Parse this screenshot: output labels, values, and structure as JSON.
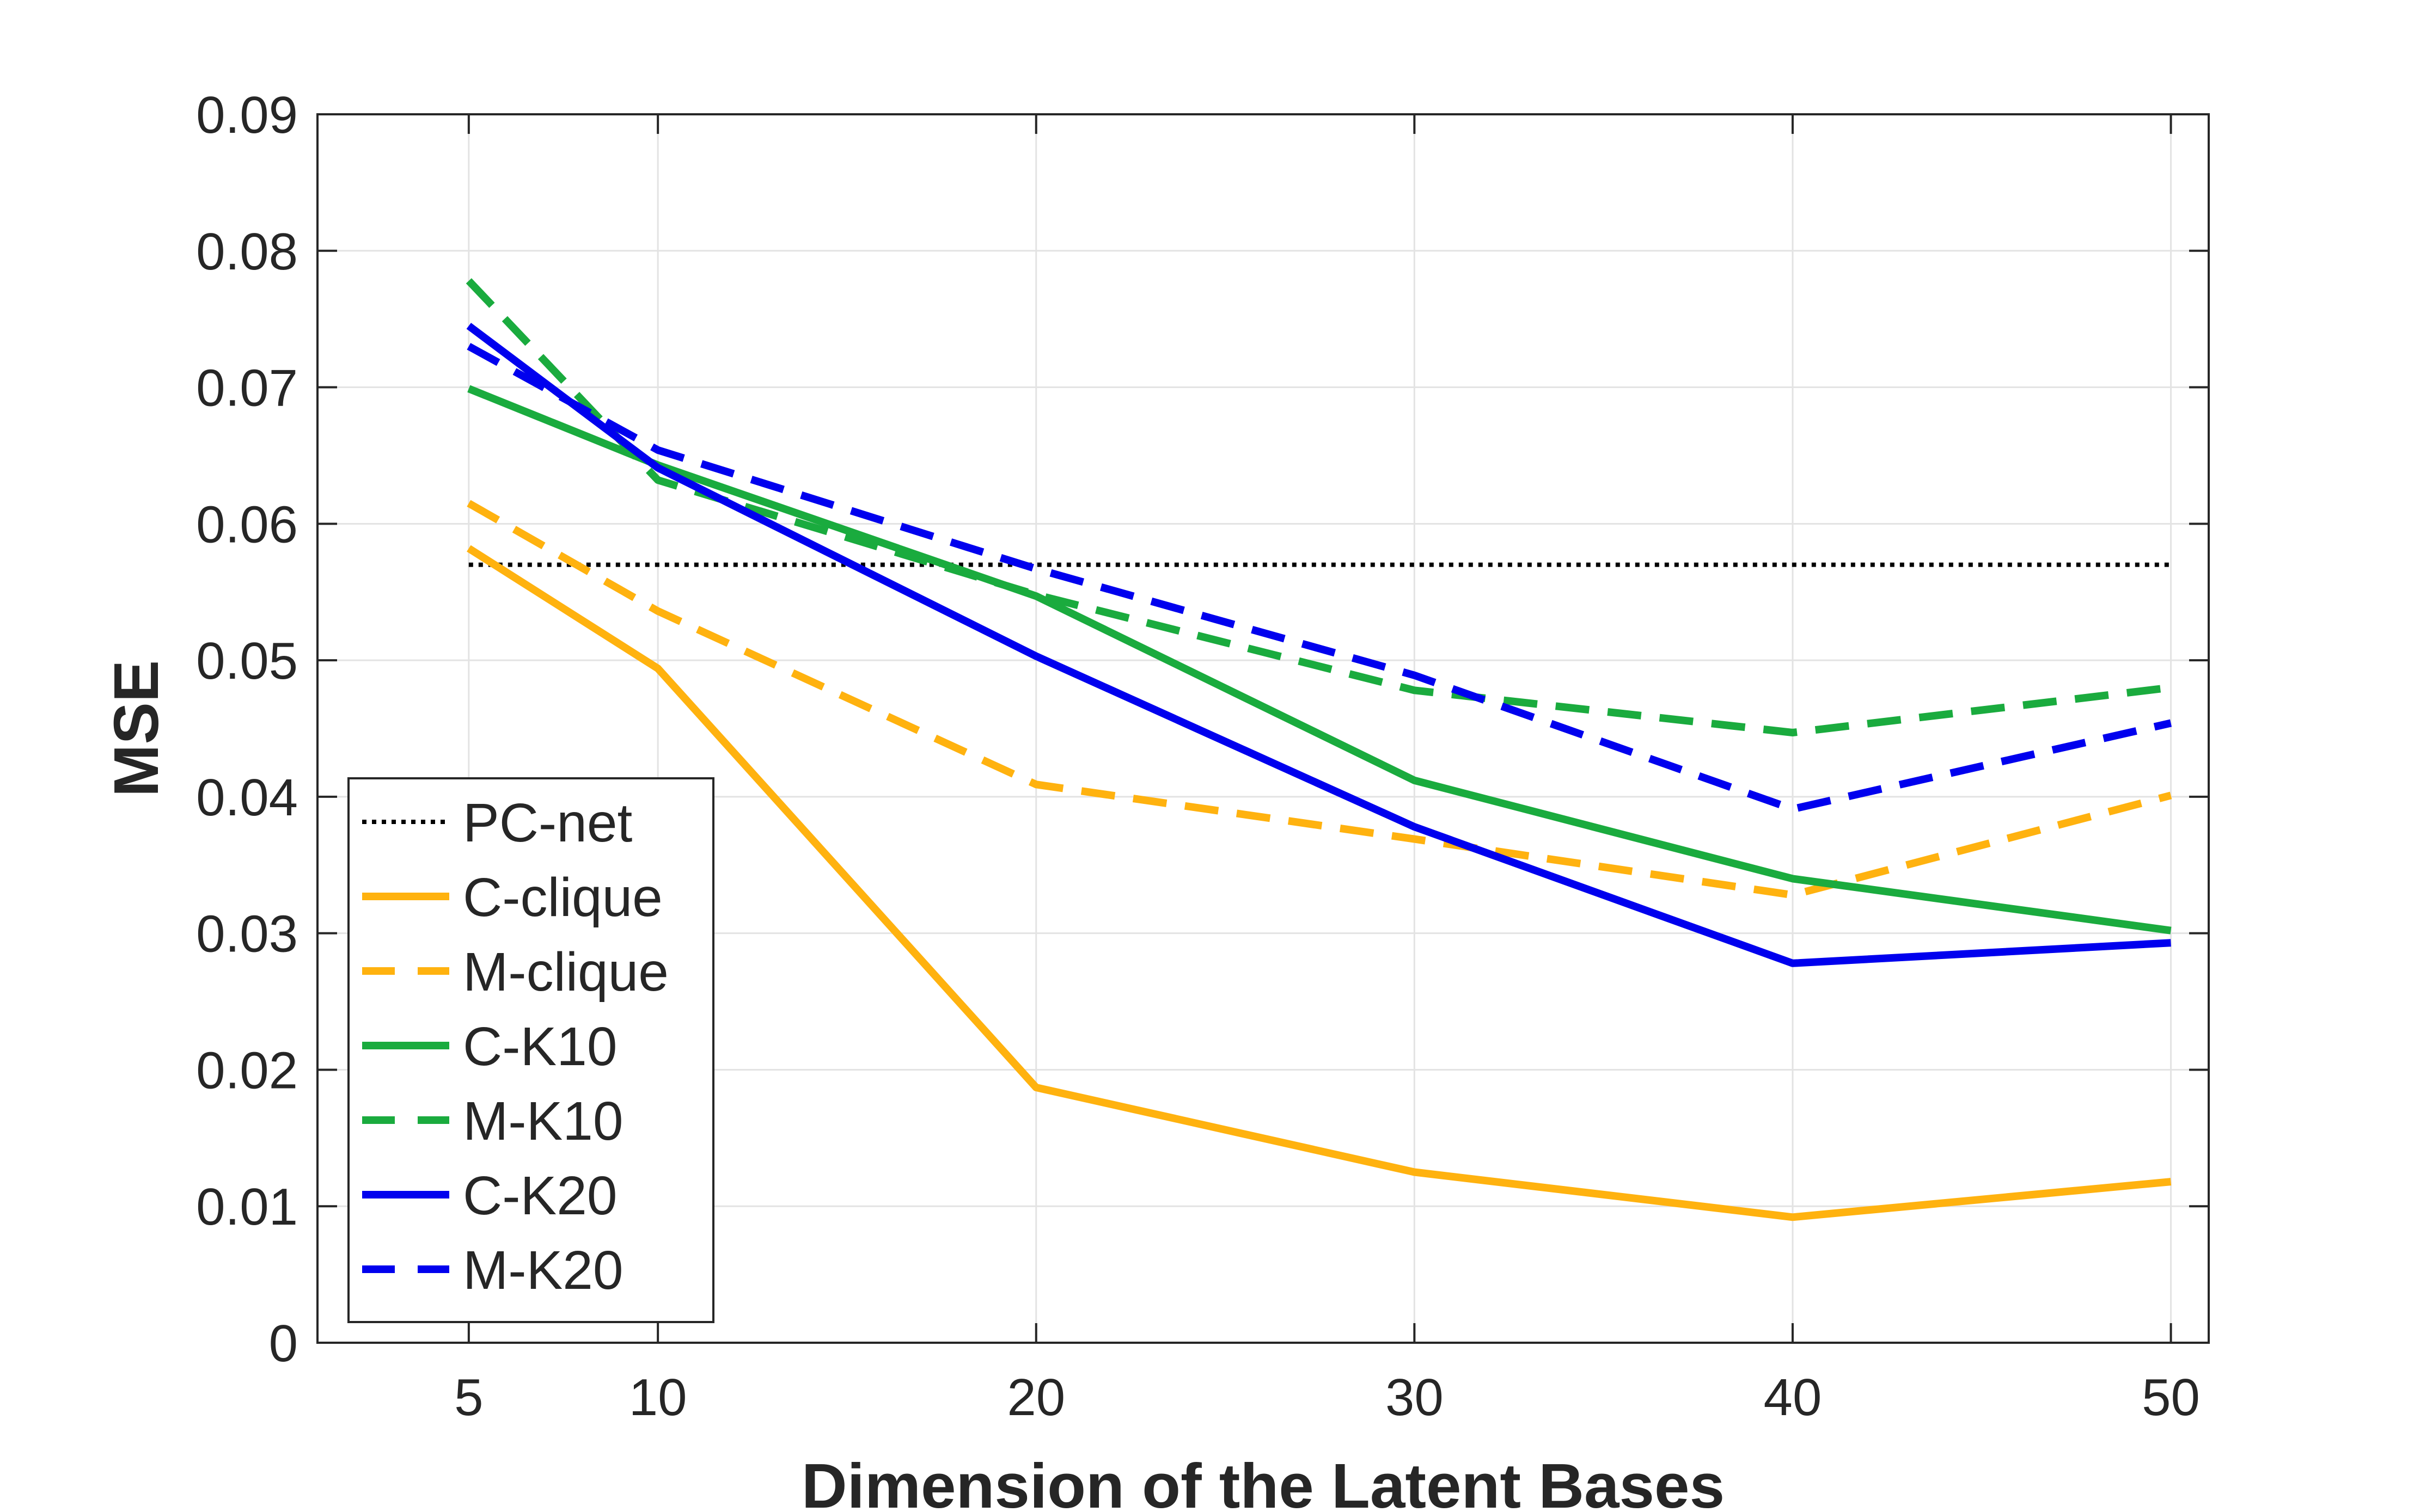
{
  "chart_data": {
    "type": "line",
    "title": "",
    "xlabel": "Dimension of the Latent Bases",
    "ylabel": "MSE",
    "xlim": [
      1,
      51
    ],
    "ylim": [
      0,
      0.09
    ],
    "grid": true,
    "legend_position": "bottom-left",
    "x_ticks": [
      5,
      10,
      20,
      30,
      40,
      50
    ],
    "x_tick_labels": [
      "5",
      "10",
      "20",
      "30",
      "40",
      "50"
    ],
    "y_ticks": [
      0,
      0.01,
      0.02,
      0.03,
      0.04,
      0.05,
      0.06,
      0.07,
      0.08,
      0.09
    ],
    "y_tick_labels": [
      "0",
      "0.01",
      "0.02",
      "0.03",
      "0.04",
      "0.05",
      "0.06",
      "0.07",
      "0.08",
      "0.09"
    ],
    "x": [
      5,
      10,
      20,
      30,
      40,
      50
    ],
    "series": [
      {
        "name": "PC-net",
        "color": "#000000",
        "style": "dotted",
        "values": [
          0.057,
          0.057,
          0.057,
          0.057,
          0.057,
          0.057
        ]
      },
      {
        "name": "C-clique",
        "color": "#ffb20f",
        "style": "solid",
        "values": [
          0.0582,
          0.0494,
          0.0187,
          0.0125,
          0.0092,
          0.0118
        ]
      },
      {
        "name": "M-clique",
        "color": "#ffb20f",
        "style": "dashed",
        "values": [
          0.0615,
          0.0536,
          0.0409,
          0.0369,
          0.0328,
          0.0401
        ]
      },
      {
        "name": "C-K10",
        "color": "#1aab3e",
        "style": "solid",
        "values": [
          0.0699,
          0.0643,
          0.0547,
          0.0412,
          0.034,
          0.0302
        ]
      },
      {
        "name": "M-K10",
        "color": "#1aab3e",
        "style": "dashed",
        "values": [
          0.0778,
          0.0632,
          0.0548,
          0.0478,
          0.0447,
          0.048
        ]
      },
      {
        "name": "C-K20",
        "color": "#0000ee",
        "style": "solid",
        "values": [
          0.0745,
          0.0641,
          0.0503,
          0.0378,
          0.0278,
          0.0293
        ]
      },
      {
        "name": "M-K20",
        "color": "#0000ee",
        "style": "dashed",
        "values": [
          0.073,
          0.0654,
          0.0567,
          0.0489,
          0.0391,
          0.0454
        ]
      }
    ]
  }
}
